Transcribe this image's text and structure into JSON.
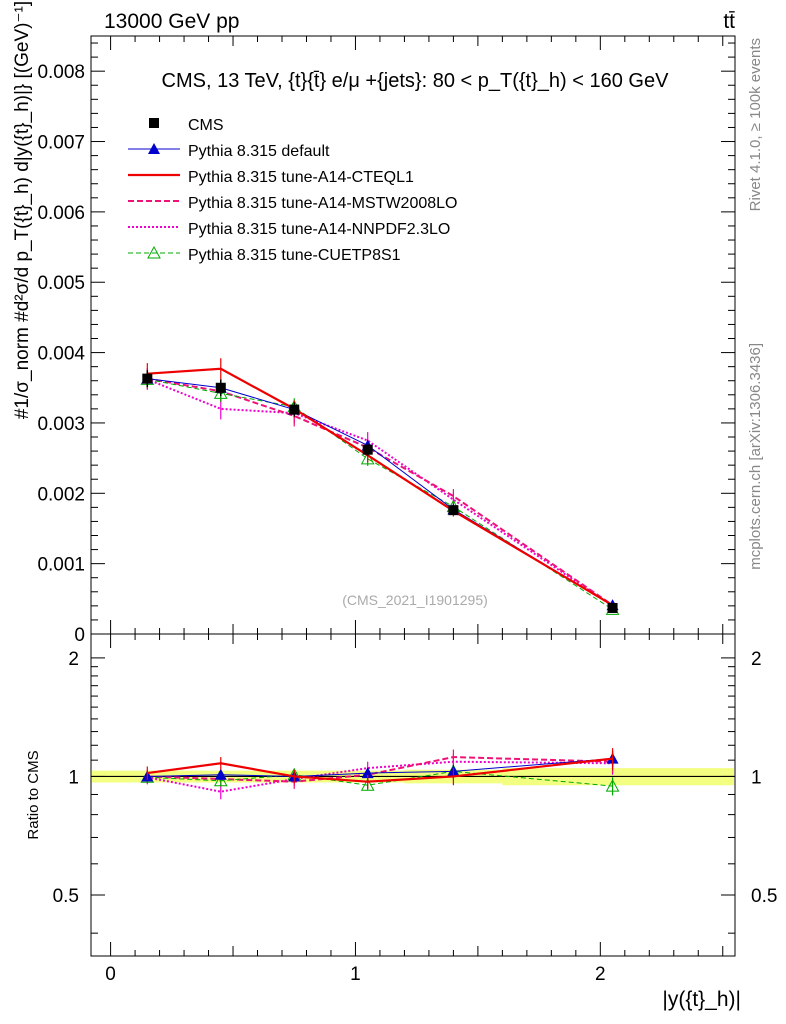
{
  "header": {
    "left_label": "13000 GeV pp",
    "right_label": "tt̄"
  },
  "side_labels": {
    "rivet": "Rivet 4.1.0, ≥ 100k events",
    "mcplots": "mcplots.cern.ch [arXiv:1306.3436]"
  },
  "colors": {
    "cms": "#000000",
    "default": "#0000cc",
    "cteql1": "#ee0000",
    "mstw": "#ee1177",
    "nnpdf": "#ee00cc",
    "cuetp": "#00aa00",
    "band": "#f2ff80"
  },
  "chart_data": [
    {
      "type": "line",
      "panel": "main",
      "title": "CMS, 13 TeV, {t}{t̄} e/μ +{jets}: 80 <  p_T({t}_h) < 160 GeV",
      "watermark": "(CMS_2021_I1901295)",
      "ylabel": "#1/σ_norm #d²σ/d p_T({t}_h) d|y({t}_h)|} [(GeV)⁻¹]",
      "xlim": [
        -0.08,
        2.55
      ],
      "ylim": [
        0,
        0.0085
      ],
      "yticks": [
        {
          "value": 0,
          "label": "0"
        },
        {
          "value": 0.001,
          "label": "0.001"
        },
        {
          "value": 0.002,
          "label": "0.002"
        },
        {
          "value": 0.003,
          "label": "0.003"
        },
        {
          "value": 0.004,
          "label": "0.004"
        },
        {
          "value": 0.005,
          "label": "0.005"
        },
        {
          "value": 0.006,
          "label": "0.006"
        },
        {
          "value": 0.007,
          "label": "0.007"
        },
        {
          "value": 0.008,
          "label": "0.008"
        }
      ],
      "x": [
        0.15,
        0.45,
        0.75,
        1.05,
        1.4,
        2.05
      ],
      "x_bins": [
        [
          0,
          0.3
        ],
        [
          0.3,
          0.6
        ],
        [
          0.6,
          0.9
        ],
        [
          0.9,
          1.2
        ],
        [
          1.2,
          1.6
        ],
        [
          1.6,
          2.5
        ]
      ],
      "series": [
        {
          "key": "cms",
          "name": "CMS",
          "style": "square",
          "values": [
            0.00363,
            0.0035,
            0.00319,
            0.00262,
            0.00176,
            0.00037
          ],
          "errors": [
            0.00012,
            0.00012,
            0.0001,
            9e-05,
            6e-05,
            2e-05
          ]
        },
        {
          "key": "default",
          "name": "Pythia 8.315 default",
          "style": "triangle",
          "values": [
            0.00363,
            0.0035,
            0.00319,
            0.00268,
            0.00177,
            0.00041
          ],
          "errors": [
            8e-05,
            8e-05,
            8e-05,
            7e-05,
            6e-05,
            2e-05
          ]
        },
        {
          "key": "cteql1",
          "name": "Pythia 8.315 tune-A14-CTEQL1",
          "style": "solid",
          "values": [
            0.0037,
            0.00377,
            0.0032,
            0.00254,
            0.00175,
            0.00041
          ],
          "errors": [
            0.00015,
            0.00015,
            0.00012,
            0.0001,
            8e-05,
            3e-05
          ]
        },
        {
          "key": "mstw",
          "name": "Pythia 8.315 tune-A14-MSTW2008LO",
          "style": "dashed",
          "values": [
            0.00363,
            0.00345,
            0.0031,
            0.00265,
            0.00196,
            0.00041
          ],
          "errors": [
            0.00015,
            0.00015,
            0.00015,
            0.00012,
            0.0001,
            3e-05
          ]
        },
        {
          "key": "nnpdf",
          "name": "Pythia 8.315 tune-A14-NNPDF2.3LO",
          "style": "dotted",
          "values": [
            0.00362,
            0.0032,
            0.00314,
            0.00275,
            0.00191,
            0.0004
          ],
          "errors": [
            0.00015,
            0.00015,
            0.00015,
            0.00012,
            0.0001,
            3e-05
          ]
        },
        {
          "key": "cuetp",
          "name": "Pythia 8.315 tune-CUETP8S1",
          "style": "dashed-open-triangle",
          "values": [
            0.00362,
            0.00342,
            0.00323,
            0.00249,
            0.00181,
            0.00035
          ],
          "errors": [
            0.00012,
            0.00012,
            0.00012,
            0.0001,
            8e-05,
            3e-05
          ]
        }
      ]
    },
    {
      "type": "line",
      "panel": "ratio",
      "ylabel": "Ratio to CMS",
      "xlabel": "|y({t}_h)|",
      "xlim": [
        -0.08,
        2.55
      ],
      "ylim": [
        0.35,
        2.3
      ],
      "xticks": [
        {
          "value": 0,
          "label": "0"
        },
        {
          "value": 1,
          "label": "1"
        },
        {
          "value": 2,
          "label": "2"
        }
      ],
      "yticks": [
        {
          "value": 0.5,
          "label": "0.5"
        },
        {
          "value": 1,
          "label": "1"
        },
        {
          "value": 2,
          "label": "2"
        }
      ],
      "x": [
        0.15,
        0.45,
        0.75,
        1.05,
        1.4,
        2.05
      ],
      "band": [
        0.035,
        0.035,
        0.035,
        0.035,
        0.04,
        0.05
      ],
      "series": [
        {
          "key": "default",
          "values": [
            1.0,
            1.01,
            1.0,
            1.02,
            1.03,
            1.11
          ],
          "errors": [
            0.03,
            0.03,
            0.03,
            0.03,
            0.04,
            0.05
          ]
        },
        {
          "key": "cteql1",
          "values": [
            1.02,
            1.08,
            1.0,
            0.97,
            1.0,
            1.11
          ],
          "errors": [
            0.04,
            0.04,
            0.04,
            0.04,
            0.05,
            0.07
          ]
        },
        {
          "key": "mstw",
          "values": [
            1.0,
            0.985,
            0.97,
            1.01,
            1.12,
            1.09
          ],
          "errors": [
            0.04,
            0.04,
            0.04,
            0.04,
            0.05,
            0.07
          ]
        },
        {
          "key": "nnpdf",
          "values": [
            0.995,
            0.915,
            0.985,
            1.05,
            1.09,
            1.08
          ],
          "errors": [
            0.04,
            0.04,
            0.04,
            0.04,
            0.05,
            0.07
          ]
        },
        {
          "key": "cuetp",
          "values": [
            0.995,
            0.975,
            1.01,
            0.95,
            1.03,
            0.945
          ],
          "errors": [
            0.03,
            0.03,
            0.03,
            0.03,
            0.04,
            0.05
          ]
        }
      ]
    }
  ]
}
